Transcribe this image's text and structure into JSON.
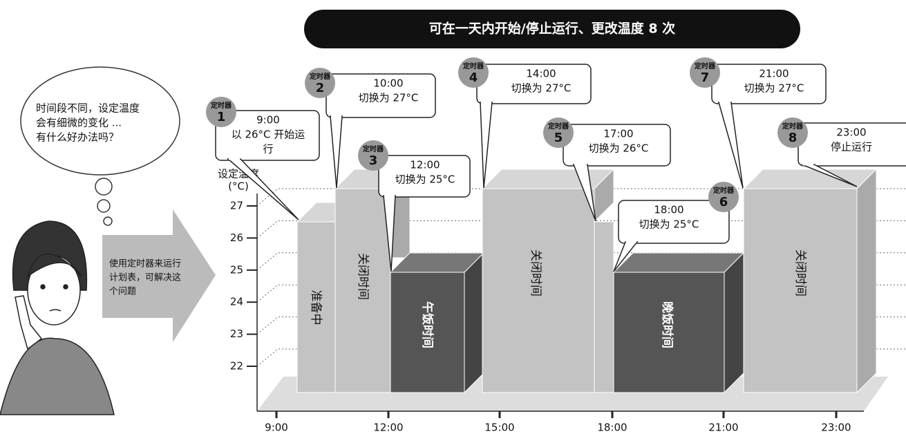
{
  "header": {
    "title": "可在一天内开始/停止运行、更改温度 8 次"
  },
  "thought": {
    "lines": [
      "时间段不同，设定温度",
      "会有细微的变化 ...",
      "有什么好办法吗？"
    ]
  },
  "arrow": {
    "lines": [
      "使用定时器来运行",
      "计划表，可解决这",
      "个问题"
    ]
  },
  "y_axis": {
    "label": "设定温度",
    "unit": "(°C)",
    "ticks": [
      "27",
      "26",
      "25",
      "24",
      "23",
      "22"
    ]
  },
  "x_axis": {
    "ticks": [
      "9:00",
      "12:00",
      "15:00",
      "18:00",
      "21:00",
      "23:00"
    ]
  },
  "blocks": [
    "准备中",
    "关闭时间",
    "午饭时间",
    "关闭时间",
    "晚饭时间",
    "关闭时间"
  ],
  "timers": [
    {
      "tag": "定时器",
      "number": "1",
      "lines": [
        "9:00",
        "以 26°C 开始运",
        "行"
      ]
    },
    {
      "tag": "定时器",
      "number": "2",
      "lines": [
        "10:00",
        "切换为 27°C"
      ]
    },
    {
      "tag": "定时器",
      "number": "3",
      "lines": [
        "12:00",
        "切换为 25°C"
      ]
    },
    {
      "tag": "定时器",
      "number": "4",
      "lines": [
        "14:00",
        "切换为 27°C"
      ]
    },
    {
      "tag": "定时器",
      "number": "5",
      "lines": [
        "17:00",
        "切换为 26°C"
      ]
    },
    {
      "tag": "定时器",
      "number": "6",
      "lines": [
        "18:00",
        "切换为 25°C"
      ]
    },
    {
      "tag": "定时器",
      "number": "7",
      "lines": [
        "21:00",
        "切换为 27°C"
      ]
    },
    {
      "tag": "定时器",
      "number": "8",
      "lines": [
        "23:00",
        "停止运行"
      ]
    }
  ]
}
